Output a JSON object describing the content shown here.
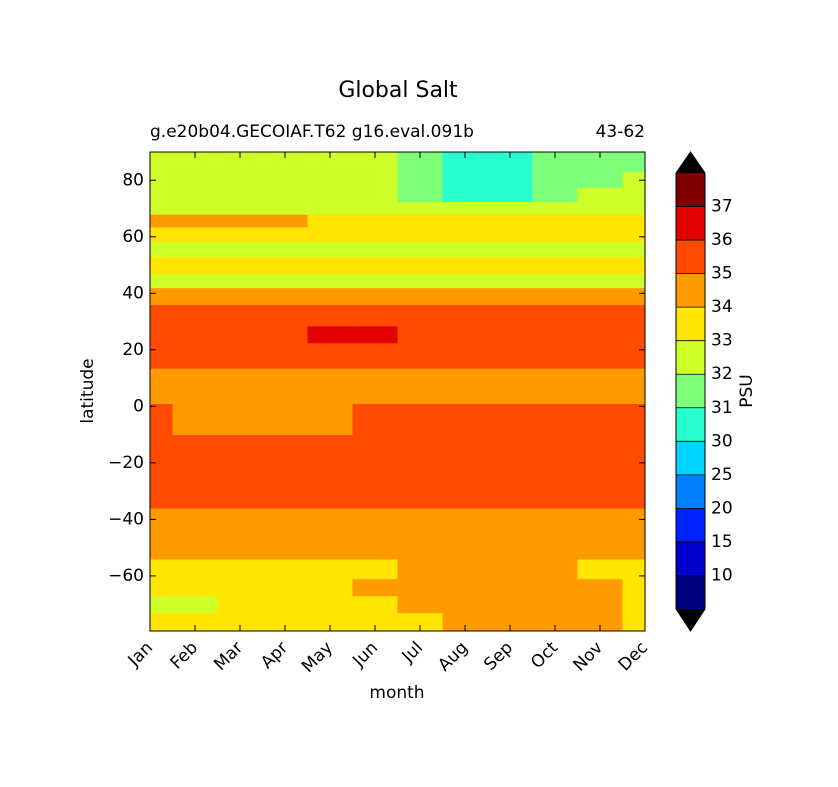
{
  "chart_data": {
    "type": "contourf",
    "title": "Global Salt",
    "subtitle_left": "g.e20b04.GECOIAF.T62 g16.eval.091b",
    "subtitle_right": "43-62",
    "xlabel": "month",
    "ylabel": "latitude",
    "categories": [
      "Jan",
      "Feb",
      "Mar",
      "Apr",
      "May",
      "Jun",
      "Jul",
      "Aug",
      "Sep",
      "Oct",
      "Nov",
      "Dec"
    ],
    "ylim": [
      -79.5,
      90
    ],
    "yticks": [
      {
        "value": -60,
        "label": "−60"
      },
      {
        "value": -40,
        "label": "−40"
      },
      {
        "value": -20,
        "label": "−20"
      },
      0,
      20,
      40,
      60,
      80
    ],
    "y": [
      -76,
      -70,
      -64,
      -58,
      -50,
      -42,
      -30,
      -15,
      -5,
      7,
      20,
      25,
      32,
      40,
      44,
      50,
      56,
      61,
      66,
      70,
      75,
      80,
      86
    ],
    "z": [
      [
        33.5,
        33.5,
        33.5,
        33.5,
        33.5,
        33.5,
        33.5,
        34.5,
        34.5,
        34.5,
        34.5,
        33.5
      ],
      [
        32.5,
        32.5,
        33.5,
        33.5,
        33.5,
        33.5,
        34.5,
        34.5,
        34.5,
        34.5,
        34.5,
        33.5
      ],
      [
        33.5,
        33.5,
        33.5,
        33.5,
        33.5,
        34.5,
        34.5,
        34.5,
        34.5,
        34.5,
        34.5,
        33.5
      ],
      [
        33.5,
        33.5,
        33.5,
        33.5,
        33.5,
        33.5,
        34.5,
        34.5,
        34.5,
        34.5,
        33.5,
        33.5
      ],
      [
        34.5,
        34.5,
        34.5,
        34.5,
        34.5,
        34.5,
        34.5,
        34.5,
        34.5,
        34.5,
        34.5,
        34.5
      ],
      [
        34.5,
        34.5,
        34.5,
        34.5,
        34.5,
        34.5,
        34.5,
        34.5,
        34.5,
        34.5,
        34.5,
        34.5
      ],
      [
        35.5,
        35.5,
        35.5,
        35.5,
        35.5,
        35.5,
        35.5,
        35.5,
        35.5,
        35.5,
        35.5,
        35.5
      ],
      [
        35.5,
        35.5,
        35.5,
        35.5,
        35.5,
        35.5,
        35.5,
        35.5,
        35.5,
        35.5,
        35.5,
        35.5
      ],
      [
        35.5,
        34.5,
        34.5,
        34.5,
        34.5,
        35.5,
        35.5,
        35.5,
        35.5,
        35.5,
        35.5,
        35.5
      ],
      [
        34.5,
        34.5,
        34.5,
        34.5,
        34.5,
        34.5,
        34.5,
        34.5,
        34.5,
        34.5,
        34.5,
        34.5
      ],
      [
        35.5,
        35.5,
        35.5,
        35.5,
        35.5,
        35.5,
        35.5,
        35.5,
        35.5,
        35.5,
        35.5,
        35.5
      ],
      [
        35.5,
        35.5,
        35.5,
        35.5,
        36.2,
        36.2,
        35.5,
        35.5,
        35.5,
        35.5,
        35.5,
        35.5
      ],
      [
        35.5,
        35.5,
        35.5,
        35.5,
        35.5,
        35.5,
        35.5,
        35.5,
        35.5,
        35.5,
        35.5,
        35.5
      ],
      [
        34.5,
        34.5,
        34.5,
        34.5,
        34.5,
        34.5,
        34.5,
        34.5,
        34.5,
        34.5,
        34.5,
        34.5
      ],
      [
        32.5,
        32.5,
        32.5,
        32.5,
        32.5,
        32.5,
        32.5,
        32.5,
        32.5,
        32.5,
        32.5,
        32.5
      ],
      [
        33.5,
        33.5,
        33.5,
        33.5,
        33.5,
        33.5,
        33.5,
        33.5,
        33.5,
        33.5,
        33.5,
        33.5
      ],
      [
        32.5,
        32.5,
        32.5,
        32.5,
        32.5,
        32.5,
        32.5,
        32.5,
        32.5,
        32.5,
        32.5,
        32.5
      ],
      [
        33.5,
        33.5,
        33.5,
        33.5,
        33.5,
        33.5,
        33.5,
        33.5,
        33.5,
        33.5,
        33.5,
        33.5
      ],
      [
        34.3,
        34.3,
        34.3,
        34.3,
        33.5,
        33.5,
        33.5,
        33.5,
        33.5,
        33.5,
        33.5,
        33.5
      ],
      [
        32.5,
        32.5,
        32.5,
        32.5,
        32.5,
        32.5,
        32.5,
        32.5,
        32.5,
        32.5,
        32.5,
        32.5
      ],
      [
        32.5,
        32.5,
        32.5,
        32.5,
        32.5,
        32.5,
        31.5,
        30.5,
        30.5,
        31.5,
        32.5,
        32.5
      ],
      [
        32.5,
        32.5,
        32.5,
        32.5,
        32.5,
        32.5,
        31.5,
        30.5,
        30.5,
        31.5,
        31.5,
        32.5
      ],
      [
        32.5,
        32.5,
        32.5,
        32.5,
        32.5,
        32.5,
        31.5,
        30.5,
        30.5,
        31.5,
        31.5,
        31.5
      ]
    ],
    "colorbar": {
      "label": "PSU",
      "ticks": [
        10,
        15,
        20,
        25,
        30,
        31,
        32,
        33,
        34,
        35,
        36,
        37
      ],
      "colors": [
        "#00007f",
        "#0000cd",
        "#0022ff",
        "#0080ff",
        "#00d4ff",
        "#29ffce",
        "#7dff7a",
        "#ceff29",
        "#ffe500",
        "#ff9a00",
        "#ff4a00",
        "#e30000",
        "#7f0000"
      ],
      "extend_colors": [
        "#000000",
        "#000000"
      ]
    }
  }
}
